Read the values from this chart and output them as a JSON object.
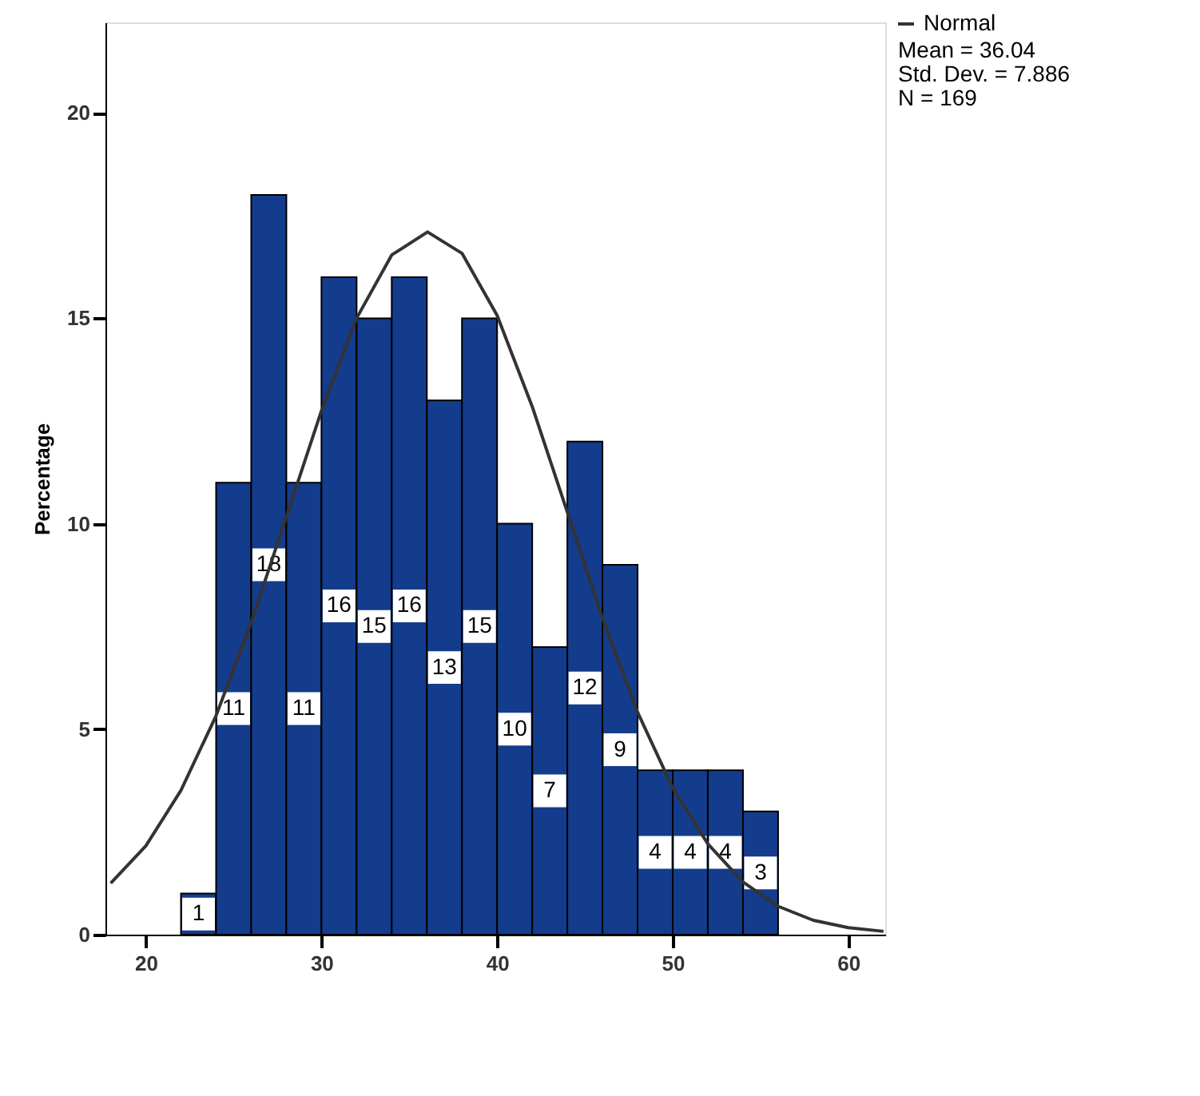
{
  "chart_data": {
    "type": "histogram",
    "ylabel": "Percentage",
    "bins": [
      22,
      24,
      26,
      28,
      30,
      32,
      34,
      36,
      38,
      40,
      42,
      44,
      46,
      48,
      50,
      52,
      54,
      56
    ],
    "values": [
      1,
      11,
      18,
      11,
      16,
      15,
      16,
      13,
      15,
      10,
      7,
      12,
      9,
      4,
      4,
      4,
      3
    ],
    "color": "#143c8c",
    "value_labels": [
      "1",
      "11",
      "18",
      "11",
      "16",
      "15",
      "16",
      "13",
      "15",
      "10",
      "7",
      "12",
      "9",
      "4",
      "4",
      "4",
      "3"
    ],
    "series": [
      {
        "name": "Normal",
        "type": "line",
        "color": "#333333",
        "x": [
          18,
          20,
          22,
          24,
          26,
          28,
          30,
          32,
          34,
          36.04,
          38,
          40,
          42,
          44,
          46,
          48,
          50,
          52,
          54,
          56,
          58,
          60,
          62
        ],
        "values": [
          1.25,
          2.16,
          3.51,
          5.33,
          7.6,
          10.17,
          12.75,
          15.0,
          16.54,
          17.1,
          16.58,
          15.07,
          12.85,
          10.28,
          7.7,
          5.41,
          3.57,
          2.21,
          1.28,
          0.69,
          0.35,
          0.17,
          0.08
        ]
      }
    ],
    "xlim": [
      17.7,
      62.1
    ],
    "ylim": [
      0,
      22.2
    ],
    "xticks": [
      20,
      30,
      40,
      50,
      60
    ],
    "yticks": [
      0,
      5,
      10,
      15,
      20
    ],
    "legend": "top right",
    "grid": false,
    "annotations": [
      "Mean = 36.04",
      "Std. Dev. = 7.886",
      "N = 169"
    ]
  }
}
